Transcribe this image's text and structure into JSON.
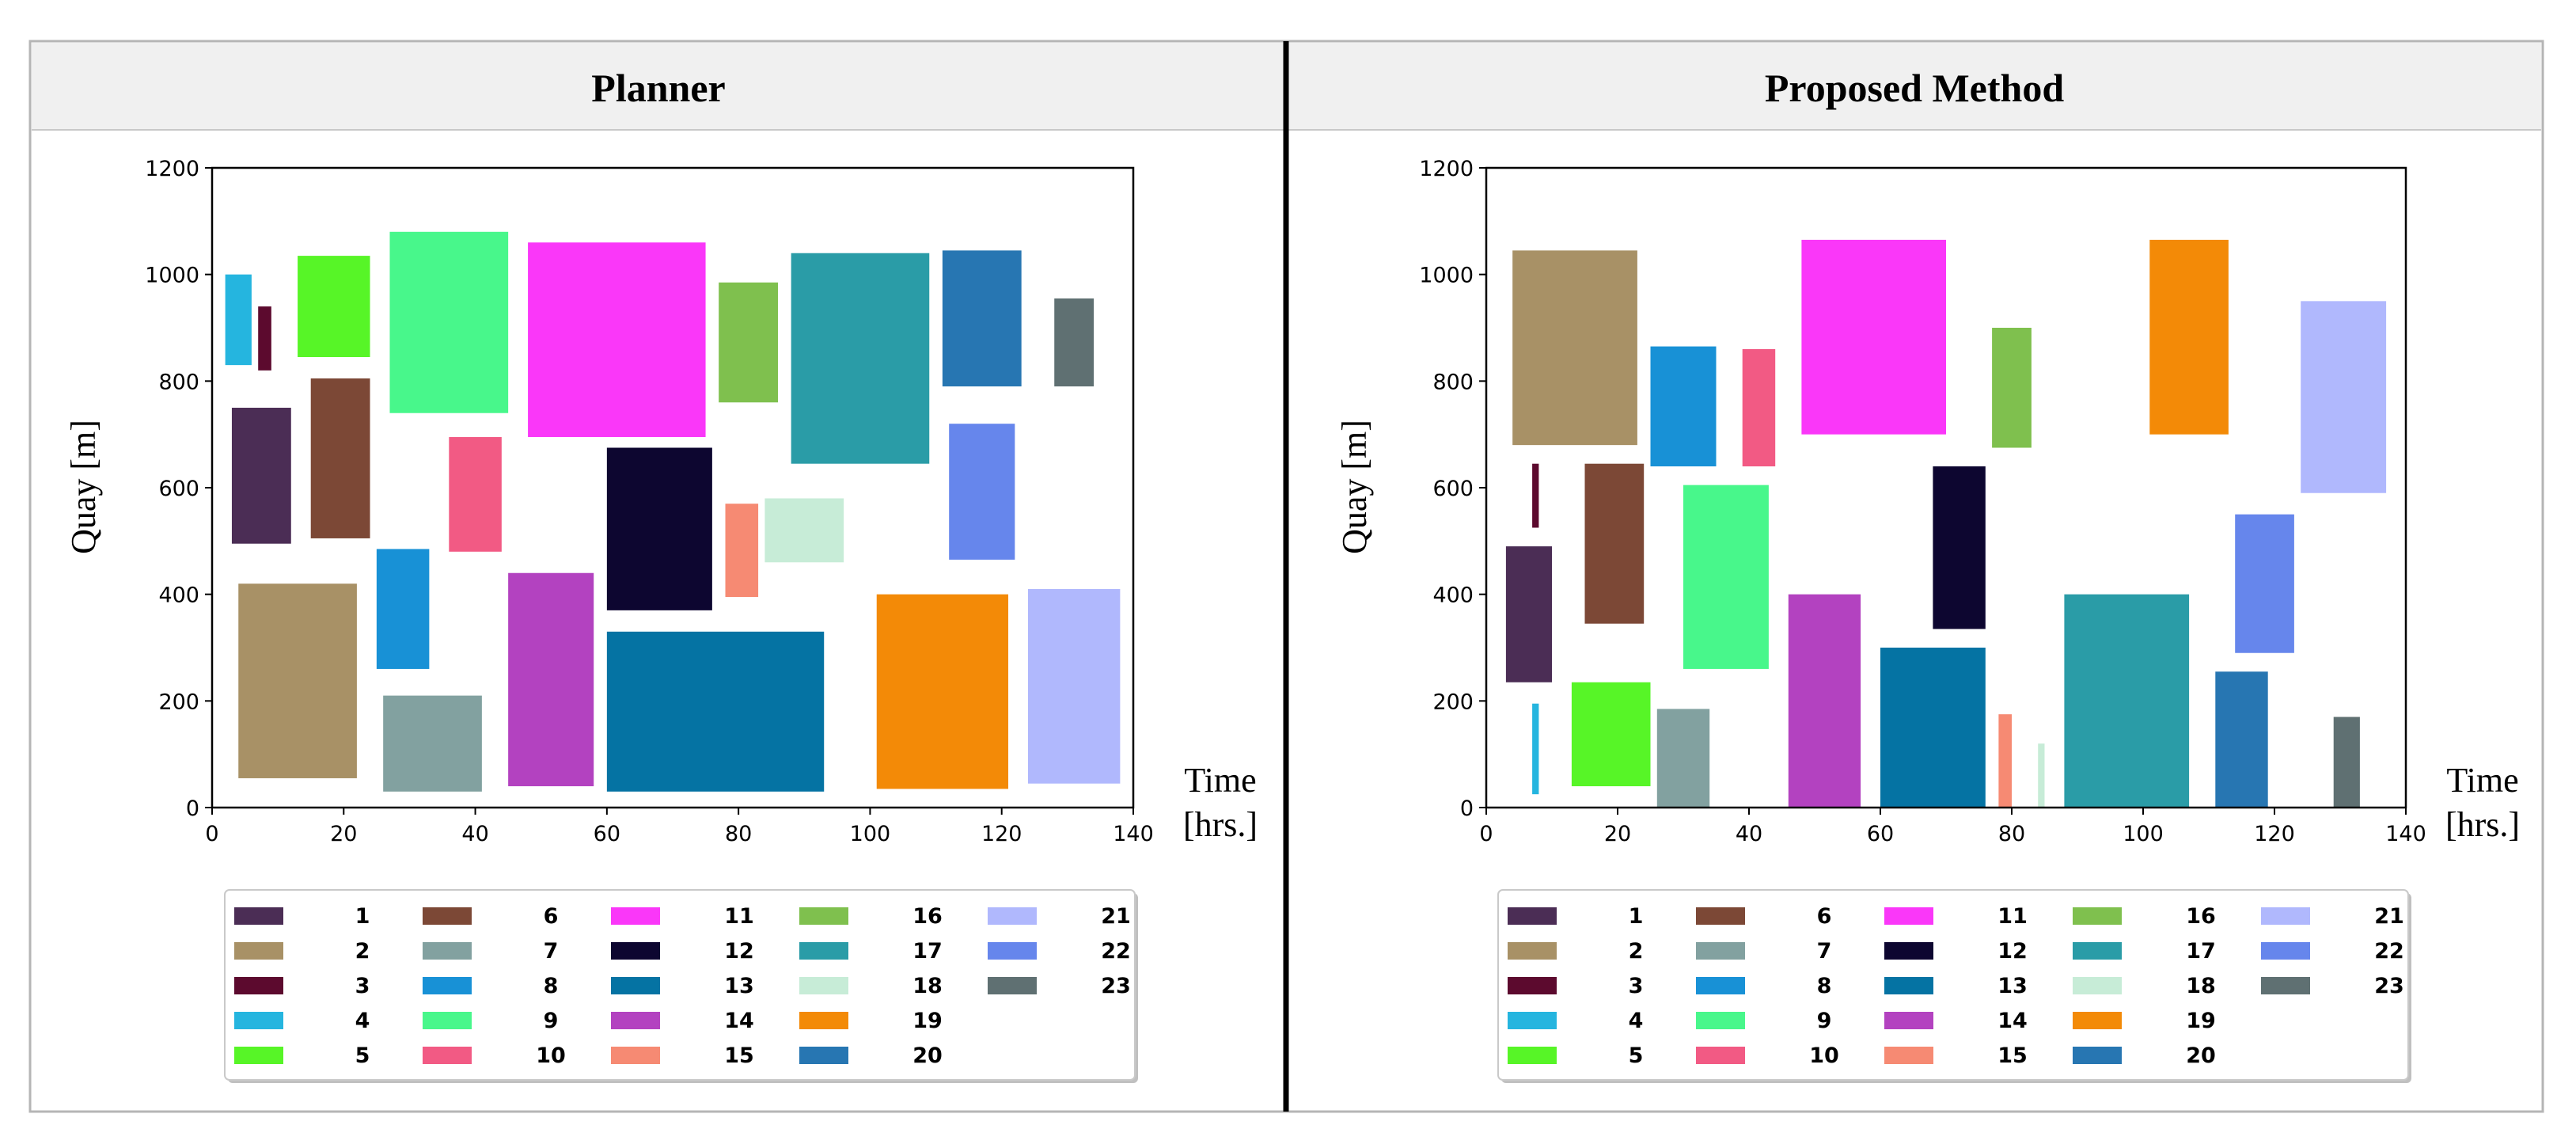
{
  "colors": {
    "1": "#4b2d55",
    "2": "#a89166",
    "3": "#5c0a2e",
    "4": "#25b5df",
    "5": "#57f527",
    "6": "#7c4836",
    "7": "#82a1a0",
    "8": "#1891d6",
    "9": "#48f78b",
    "10": "#f25a84",
    "11": "#fa37f9",
    "12": "#0d0630",
    "13": "#0573a3",
    "14": "#b342c0",
    "15": "#f68a73",
    "16": "#7fc04e",
    "17": "#2a9ca7",
    "18": "#c7ecd7",
    "19": "#f38a07",
    "20": "#2776b2",
    "21": "#b0b8fd",
    "22": "#6686ec",
    "23": "#5f7072"
  },
  "chart_data": [
    {
      "type": "rectangle-schedule",
      "title": "Planner",
      "xlabel": "Time [hrs.]",
      "ylabel": "Quay [m]",
      "xlim": [
        0,
        140
      ],
      "ylim": [
        0,
        1200
      ],
      "xticks": [
        0,
        20,
        40,
        60,
        80,
        100,
        120,
        140
      ],
      "yticks": [
        0,
        200,
        400,
        600,
        800,
        1000,
        1200
      ],
      "legend": [
        "1",
        "2",
        "3",
        "4",
        "5",
        "6",
        "7",
        "8",
        "9",
        "10",
        "11",
        "12",
        "13",
        "14",
        "15",
        "16",
        "17",
        "18",
        "19",
        "20",
        "21",
        "22",
        "23"
      ],
      "vessels": [
        {
          "id": "1",
          "start": 3,
          "end": 12,
          "low": 495,
          "high": 750
        },
        {
          "id": "2",
          "start": 4,
          "end": 22,
          "low": 55,
          "high": 420
        },
        {
          "id": "3",
          "start": 7,
          "end": 9,
          "low": 820,
          "high": 940
        },
        {
          "id": "4",
          "start": 2,
          "end": 6,
          "low": 830,
          "high": 1000
        },
        {
          "id": "5",
          "start": 13,
          "end": 24,
          "low": 845,
          "high": 1035
        },
        {
          "id": "6",
          "start": 15,
          "end": 24,
          "low": 505,
          "high": 805
        },
        {
          "id": "7",
          "start": 26,
          "end": 41,
          "low": 30,
          "high": 210
        },
        {
          "id": "8",
          "start": 25,
          "end": 33,
          "low": 260,
          "high": 485
        },
        {
          "id": "9",
          "start": 27,
          "end": 45,
          "low": 740,
          "high": 1080
        },
        {
          "id": "10",
          "start": 36,
          "end": 44,
          "low": 480,
          "high": 695
        },
        {
          "id": "11",
          "start": 48,
          "end": 75,
          "low": 695,
          "high": 1060
        },
        {
          "id": "12",
          "start": 60,
          "end": 76,
          "low": 370,
          "high": 675
        },
        {
          "id": "13",
          "start": 60,
          "end": 93,
          "low": 30,
          "high": 330
        },
        {
          "id": "14",
          "start": 45,
          "end": 58,
          "low": 40,
          "high": 440
        },
        {
          "id": "15",
          "start": 78,
          "end": 83,
          "low": 395,
          "high": 570
        },
        {
          "id": "16",
          "start": 77,
          "end": 86,
          "low": 760,
          "high": 985
        },
        {
          "id": "17",
          "start": 88,
          "end": 109,
          "low": 645,
          "high": 1040
        },
        {
          "id": "18",
          "start": 84,
          "end": 96,
          "low": 460,
          "high": 580
        },
        {
          "id": "19",
          "start": 101,
          "end": 121,
          "low": 35,
          "high": 400
        },
        {
          "id": "20",
          "start": 111,
          "end": 123,
          "low": 790,
          "high": 1045
        },
        {
          "id": "21",
          "start": 124,
          "end": 138,
          "low": 45,
          "high": 410
        },
        {
          "id": "22",
          "start": 112,
          "end": 122,
          "low": 465,
          "high": 720
        },
        {
          "id": "23",
          "start": 128,
          "end": 134,
          "low": 790,
          "high": 955
        }
      ]
    },
    {
      "type": "rectangle-schedule",
      "title": "Proposed Method",
      "xlabel": "Time [hrs.]",
      "ylabel": "Quay [m]",
      "xlim": [
        0,
        140
      ],
      "ylim": [
        0,
        1200
      ],
      "xticks": [
        0,
        20,
        40,
        60,
        80,
        100,
        120,
        140
      ],
      "yticks": [
        0,
        200,
        400,
        600,
        800,
        1000,
        1200
      ],
      "legend": [
        "1",
        "2",
        "3",
        "4",
        "5",
        "6",
        "7",
        "8",
        "9",
        "10",
        "11",
        "12",
        "13",
        "14",
        "15",
        "16",
        "17",
        "18",
        "19",
        "20",
        "21",
        "22",
        "23"
      ],
      "vessels": [
        {
          "id": "1",
          "start": 3,
          "end": 10,
          "low": 235,
          "high": 490
        },
        {
          "id": "2",
          "start": 4,
          "end": 23,
          "low": 680,
          "high": 1045
        },
        {
          "id": "3",
          "start": 7,
          "end": 8,
          "low": 525,
          "high": 645
        },
        {
          "id": "4",
          "start": 7,
          "end": 8,
          "low": 25,
          "high": 195
        },
        {
          "id": "5",
          "start": 13,
          "end": 25,
          "low": 40,
          "high": 235
        },
        {
          "id": "6",
          "start": 15,
          "end": 24,
          "low": 345,
          "high": 645
        },
        {
          "id": "7",
          "start": 26,
          "end": 34,
          "low": 0,
          "high": 185
        },
        {
          "id": "8",
          "start": 25,
          "end": 35,
          "low": 640,
          "high": 865
        },
        {
          "id": "9",
          "start": 30,
          "end": 43,
          "low": 260,
          "high": 605
        },
        {
          "id": "10",
          "start": 39,
          "end": 44,
          "low": 640,
          "high": 860
        },
        {
          "id": "11",
          "start": 48,
          "end": 70,
          "low": 700,
          "high": 1065
        },
        {
          "id": "12",
          "start": 68,
          "end": 76,
          "low": 335,
          "high": 640
        },
        {
          "id": "13",
          "start": 60,
          "end": 76,
          "low": 0,
          "high": 300
        },
        {
          "id": "14",
          "start": 46,
          "end": 57,
          "low": 0,
          "high": 400
        },
        {
          "id": "15",
          "start": 78,
          "end": 80,
          "low": 0,
          "high": 175
        },
        {
          "id": "16",
          "start": 77,
          "end": 83,
          "low": 675,
          "high": 900
        },
        {
          "id": "17",
          "start": 88,
          "end": 107,
          "low": 0,
          "high": 400
        },
        {
          "id": "18",
          "start": 84,
          "end": 85,
          "low": 0,
          "high": 120
        },
        {
          "id": "19",
          "start": 101,
          "end": 113,
          "low": 700,
          "high": 1065
        },
        {
          "id": "20",
          "start": 111,
          "end": 119,
          "low": 0,
          "high": 255
        },
        {
          "id": "21",
          "start": 124,
          "end": 137,
          "low": 590,
          "high": 950
        },
        {
          "id": "22",
          "start": 114,
          "end": 123,
          "low": 290,
          "high": 550
        },
        {
          "id": "23",
          "start": 129,
          "end": 133,
          "low": 0,
          "high": 170
        }
      ]
    }
  ]
}
